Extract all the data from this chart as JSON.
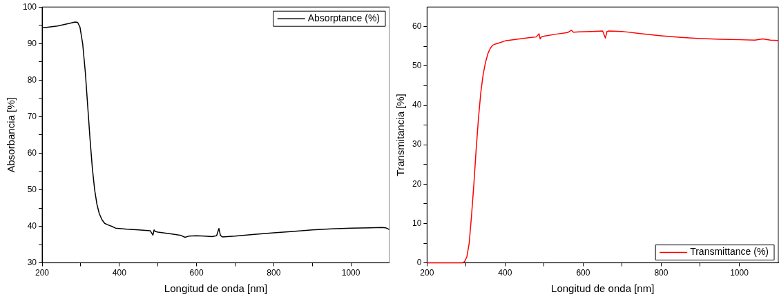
{
  "chart_data": [
    {
      "type": "line",
      "xlabel": "Longitud de onda [nm]",
      "ylabel": "Absorbancia [%]",
      "xlim": [
        200,
        1100
      ],
      "ylim": [
        30,
        100
      ],
      "xticks": [
        200,
        {
          "value": 300,
          "label": null
        },
        400,
        {
          "value": 500,
          "label": null
        },
        600,
        {
          "value": 700,
          "label": null
        },
        800,
        {
          "value": 900,
          "label": null
        },
        1000
      ],
      "yticks": [
        30,
        {
          "value": 35,
          "label": null
        },
        40,
        {
          "value": 45,
          "label": null
        },
        50,
        {
          "value": 55,
          "label": null
        },
        60,
        {
          "value": 65,
          "label": null
        },
        70,
        {
          "value": 75,
          "label": null
        },
        80,
        {
          "value": 85,
          "label": null
        },
        90,
        {
          "value": 95,
          "label": null
        },
        100
      ],
      "legend": "top right",
      "marker": "none",
      "line_style": "solid",
      "series": [
        {
          "name": "Absorptance (%)",
          "color": "#000000",
          "x": [
            200,
            240,
            270,
            285,
            292,
            298,
            305,
            312,
            318,
            324,
            330,
            336,
            342,
            348,
            355,
            362,
            370,
            380,
            390,
            400,
            420,
            450,
            480,
            487,
            490,
            493,
            500,
            530,
            560,
            570,
            580,
            600,
            620,
            640,
            652,
            658,
            662,
            667,
            680,
            700,
            750,
            800,
            850,
            900,
            950,
            1000,
            1050,
            1080,
            1090,
            1100
          ],
          "values": [
            94.3,
            94.8,
            95.5,
            95.9,
            95.8,
            94.5,
            90,
            82,
            73,
            64,
            56,
            50,
            46,
            43.5,
            41.8,
            40.8,
            40.4,
            40,
            39.5,
            39.4,
            39.2,
            39,
            38.8,
            37.6,
            39,
            38.6,
            38.4,
            38,
            37.5,
            37,
            37.3,
            37.4,
            37.3,
            37.2,
            37.4,
            39.4,
            37.5,
            37.1,
            37.2,
            37.3,
            37.8,
            38.2,
            38.6,
            39,
            39.3,
            39.5,
            39.6,
            39.7,
            39.6,
            39.1
          ]
        }
      ]
    },
    {
      "type": "line",
      "xlabel": "Longitud de onda [nm]",
      "ylabel": "Transmitancia [%]",
      "xlim": [
        200,
        1100
      ],
      "ylim": [
        0,
        65
      ],
      "xticks": [
        200,
        {
          "value": 300,
          "label": null
        },
        400,
        {
          "value": 500,
          "label": null
        },
        600,
        {
          "value": 700,
          "label": null
        },
        800,
        {
          "value": 900,
          "label": null
        },
        1000
      ],
      "yticks": [
        0,
        {
          "value": 5,
          "label": null
        },
        10,
        {
          "value": 15,
          "label": null
        },
        20,
        {
          "value": 25,
          "label": null
        },
        30,
        {
          "value": 35,
          "label": null
        },
        40,
        {
          "value": 45,
          "label": null
        },
        50,
        {
          "value": 55,
          "label": null
        },
        60
      ],
      "legend": "bottom right",
      "marker": "none",
      "line_style": "solid",
      "series": [
        {
          "name": "Transmittance (%)",
          "color": "#ff0000",
          "x": [
            200,
            250,
            290,
            296,
            302,
            308,
            314,
            320,
            326,
            332,
            338,
            344,
            350,
            356,
            362,
            368,
            375,
            385,
            400,
            430,
            460,
            480,
            487,
            490,
            493,
            500,
            530,
            560,
            570,
            575,
            590,
            620,
            650,
            657,
            661,
            666,
            700,
            750,
            800,
            850,
            900,
            950,
            1000,
            1040,
            1060,
            1080,
            1100
          ],
          "values": [
            0,
            0,
            0,
            0.3,
            1.5,
            5,
            12,
            20,
            29,
            37,
            43.5,
            48,
            51,
            53.2,
            54.5,
            55.3,
            55.6,
            55.9,
            56.4,
            56.8,
            57.2,
            57.4,
            58.2,
            56.9,
            57.4,
            57.6,
            58.1,
            58.5,
            59.1,
            58.6,
            58.7,
            58.8,
            58.9,
            57.1,
            58.8,
            58.9,
            58.8,
            58.2,
            57.7,
            57.3,
            57,
            56.8,
            56.7,
            56.6,
            56.9,
            56.6,
            56.5
          ]
        }
      ]
    }
  ]
}
